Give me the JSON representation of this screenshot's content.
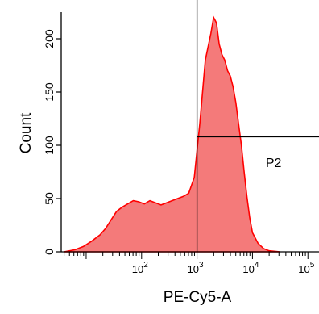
{
  "chart_data": {
    "type": "area",
    "xlabel": "PE-Cy5-A",
    "ylabel": "Count",
    "x_scale": "log",
    "xlim_log10": [
      0.55,
      5.2
    ],
    "ylim": [
      0,
      225
    ],
    "x_ticks": [
      {
        "base": "10",
        "exp": "2",
        "log10": 2
      },
      {
        "base": "10",
        "exp": "3",
        "log10": 3
      },
      {
        "base": "10",
        "exp": "4",
        "log10": 4
      },
      {
        "base": "10",
        "exp": "5",
        "log10": 5
      }
    ],
    "y_ticks": [
      {
        "label": "0",
        "value": 0
      },
      {
        "label": "50",
        "value": 50
      },
      {
        "label": "100",
        "value": 100
      },
      {
        "label": "150",
        "value": 150
      },
      {
        "label": "200",
        "value": 200
      }
    ],
    "fill_color": "#f47a7a",
    "line_color": "#ff0000",
    "gate_color": "#000000",
    "gate": {
      "label": "P2",
      "x_start_log10": 3.0,
      "y_level": 108
    },
    "series": [
      {
        "x_log10": [
          0.6,
          0.8,
          0.95,
          1.1,
          1.25,
          1.35,
          1.45,
          1.55,
          1.65,
          1.75,
          1.85,
          1.95,
          2.05,
          2.15,
          2.25,
          2.35,
          2.45,
          2.55,
          2.65,
          2.75,
          2.85,
          2.95,
          3.05,
          3.15,
          3.25,
          3.3,
          3.35,
          3.4,
          3.45,
          3.5,
          3.55,
          3.6,
          3.65,
          3.7,
          3.75,
          3.8,
          3.85,
          3.9,
          3.95,
          4.0,
          4.1,
          4.2,
          4.3,
          4.5
        ],
        "counts": [
          0,
          2,
          5,
          10,
          16,
          22,
          30,
          38,
          42,
          45,
          48,
          47,
          45,
          48,
          46,
          44,
          46,
          48,
          50,
          52,
          55,
          70,
          120,
          180,
          205,
          220,
          215,
          195,
          185,
          180,
          170,
          165,
          155,
          140,
          120,
          100,
          75,
          52,
          32,
          18,
          8,
          3,
          1,
          0
        ]
      }
    ]
  }
}
